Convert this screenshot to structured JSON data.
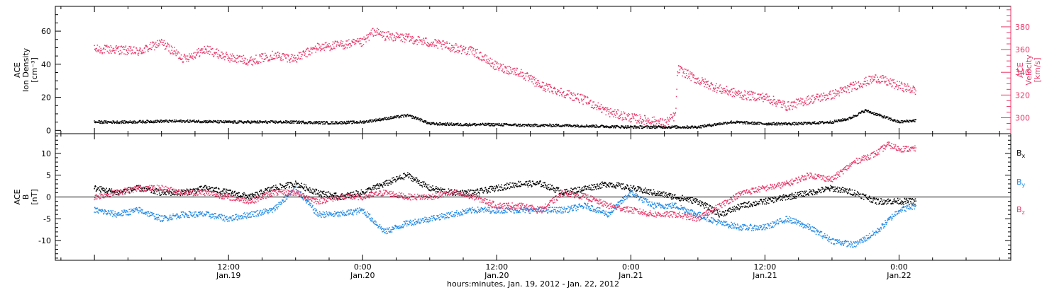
{
  "chart_data": [
    {
      "type": "scatter",
      "panel": "top",
      "ylabel_left": [
        "ACE",
        "Ion Density",
        "[cm⁻³]"
      ],
      "ylabel_right": [
        "ACE",
        "Velocity",
        "[km/s]"
      ],
      "y_left_ticks": [
        "0",
        "20",
        "40",
        "60"
      ],
      "y_left_lim": [
        -2,
        75
      ],
      "y_right_ticks": [
        "300",
        "320",
        "340",
        "360",
        "380"
      ],
      "y_right_lim": [
        286,
        398
      ],
      "colors": {
        "density": "#000000",
        "velocity": "#e8386a"
      },
      "series": [
        {
          "axis": "left",
          "color": "#000000",
          "x": [
            0,
            3,
            6,
            9,
            12,
            15,
            18,
            21,
            24,
            26,
            28,
            29,
            30,
            33,
            36,
            39,
            42,
            45,
            48,
            51,
            54,
            57,
            60,
            63,
            66,
            67.5,
            69,
            72,
            73.5
          ],
          "values": [
            5,
            5,
            5.5,
            5.5,
            5,
            5,
            5,
            4.5,
            5,
            7,
            9,
            7,
            4,
            3.5,
            3.5,
            3,
            3,
            2.5,
            2,
            2,
            2,
            5,
            4,
            4,
            5,
            7,
            12,
            5,
            6
          ]
        },
        {
          "axis": "right",
          "color": "#e8386a",
          "x": [
            0,
            2,
            4,
            6,
            8,
            10,
            12,
            14,
            16,
            18,
            20,
            22,
            24,
            25,
            26,
            28,
            30,
            32,
            34,
            36,
            38,
            40,
            42,
            44,
            46,
            48,
            50,
            51,
            52,
            52.2,
            54,
            56,
            58,
            60,
            62,
            64,
            66,
            68,
            70,
            72,
            73.5
          ],
          "values": [
            360,
            360,
            358,
            366,
            352,
            360,
            353,
            350,
            355,
            352,
            362,
            364,
            366,
            376,
            372,
            370,
            366,
            362,
            358,
            345,
            340,
            328,
            322,
            315,
            305,
            300,
            297,
            295,
            302,
            343,
            333,
            325,
            320,
            318,
            310,
            316,
            320,
            328,
            335,
            328,
            324
          ]
        }
      ]
    },
    {
      "type": "scatter",
      "panel": "bottom",
      "ylabel": [
        "ACE",
        "B",
        "[nT]"
      ],
      "y_ticks": [
        "-10",
        "-5",
        "0",
        "5",
        "10"
      ],
      "ylim": [
        -14.5,
        14.5
      ],
      "zero_line": true,
      "legend": [
        {
          "label": "B",
          "sub": "x",
          "color": "#000000"
        },
        {
          "label": "B",
          "sub": "y",
          "color": "#1e88e5"
        },
        {
          "label": "B",
          "sub": "z",
          "color": "#e8386a"
        }
      ],
      "series": [
        {
          "name": "Bx",
          "color": "#000000",
          "x": [
            0,
            2,
            4,
            6,
            8,
            10,
            12,
            14,
            16,
            18,
            20,
            22,
            24,
            26,
            28,
            30,
            32,
            34,
            36,
            38,
            40,
            42,
            44,
            46,
            48,
            50,
            52,
            54,
            56,
            58,
            60,
            62,
            64,
            66,
            68,
            70,
            72,
            73.5
          ],
          "values": [
            2,
            1,
            2,
            1,
            1,
            2,
            1,
            0,
            2,
            3,
            1,
            0,
            1,
            3,
            5,
            2,
            1,
            1,
            2,
            3,
            3,
            1,
            2,
            3,
            2,
            1,
            0,
            -1,
            -4,
            -2,
            -1,
            0,
            1,
            2,
            1,
            -1,
            -1,
            -1
          ]
        },
        {
          "name": "By",
          "color": "#1e88e5",
          "x": [
            0,
            2,
            4,
            6,
            8,
            10,
            12,
            14,
            16,
            18,
            20,
            22,
            24,
            26,
            28,
            30,
            32,
            34,
            36,
            38,
            40,
            42,
            44,
            46,
            48,
            50,
            52,
            54,
            56,
            58,
            60,
            62,
            64,
            66,
            68,
            70,
            72,
            73.5
          ],
          "values": [
            -3,
            -4,
            -3,
            -5,
            -4,
            -4,
            -5,
            -4,
            -3,
            2,
            -4,
            -4,
            -3,
            -8,
            -6,
            -5,
            -4,
            -3,
            -3,
            -3,
            -3,
            -3,
            -2,
            -4,
            1,
            -2,
            -2,
            -4,
            -6,
            -7,
            -7,
            -5,
            -7,
            -10,
            -11,
            -8,
            -3,
            -2
          ]
        },
        {
          "name": "Bz",
          "color": "#e8386a",
          "x": [
            0,
            2,
            4,
            6,
            8,
            10,
            12,
            14,
            16,
            18,
            20,
            22,
            24,
            26,
            28,
            30,
            32,
            34,
            36,
            38,
            40,
            42,
            44,
            46,
            48,
            50,
            52,
            54,
            56,
            58,
            60,
            62,
            64,
            66,
            68,
            70,
            71,
            72,
            73.5
          ],
          "values": [
            0,
            1,
            2,
            2,
            1,
            1,
            0,
            -1,
            1,
            1,
            -1,
            0,
            0,
            1,
            0,
            0,
            1,
            0,
            -2,
            -2,
            -3,
            1,
            0,
            -2,
            -3,
            -4,
            -4,
            -5,
            -2,
            1,
            2,
            3,
            5,
            4,
            8,
            10,
            12,
            11,
            11
          ]
        }
      ]
    }
  ],
  "x_axis": {
    "range_hours": [
      -3.5,
      82
    ],
    "ticks": [
      {
        "at": 12,
        "time": "12:00",
        "date": "Jan.19"
      },
      {
        "at": 24,
        "time": "0:00",
        "date": "Jan.20"
      },
      {
        "at": 36,
        "time": "12:00",
        "date": "Jan.20"
      },
      {
        "at": 48,
        "time": "0:00",
        "date": "Jan.21"
      },
      {
        "at": 60,
        "time": "12:00",
        "date": "Jan.21"
      },
      {
        "at": 72,
        "time": "0:00",
        "date": "Jan.22"
      }
    ],
    "label": "hours:minutes, Jan. 19, 2012 - Jan. 22, 2012"
  }
}
